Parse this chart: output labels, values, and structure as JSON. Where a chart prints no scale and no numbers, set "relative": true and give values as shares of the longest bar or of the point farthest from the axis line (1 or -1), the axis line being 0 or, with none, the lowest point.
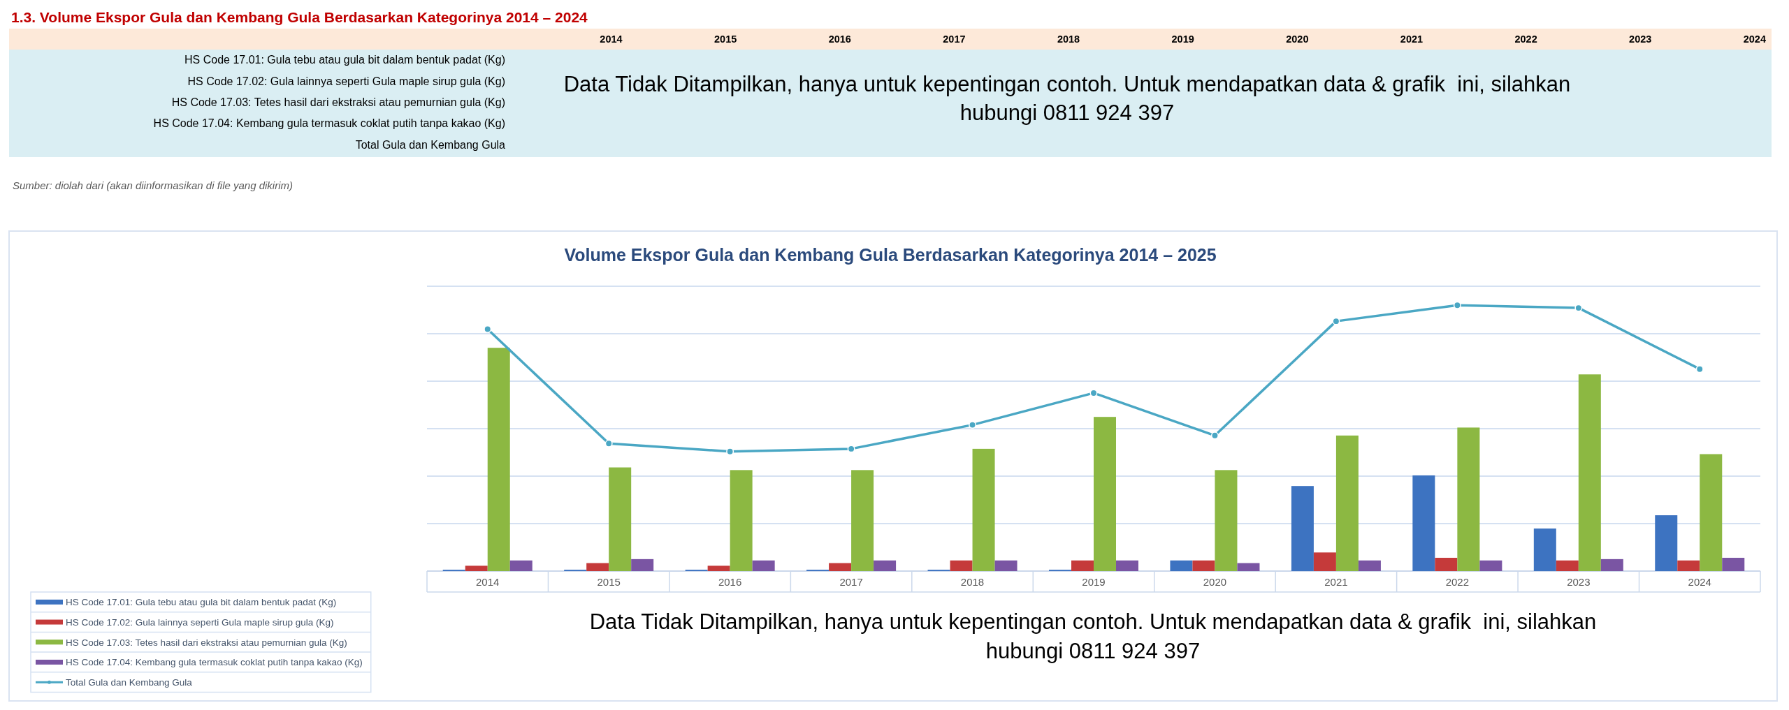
{
  "chart_data": [
    {
      "type": "heatmap",
      "title": "1.3. Volume Ekspor Gula dan Kembang Gula Berdasarkan Kategorinya 2014 – 2024",
      "categories": [
        "2014",
        "2015",
        "2016",
        "2017",
        "2018",
        "2019",
        "2020",
        "2021",
        "2022",
        "2023",
        "2024"
      ],
      "y_categories": [
        "HS Code 17.01: Gula tebu atau gula bit dalam bentuk padat (Kg)",
        "HS Code 17.02: Gula lainnya seperti Gula maple sirup gula (Kg)",
        "HS Code 17.03: Tetes hasil dari ekstraksi atau pemurnian gula (Kg)",
        "HS Code 17.04: Kembang gula termasuk coklat putih tanpa kakao (Kg)",
        "Total Gula dan Kembang Gula"
      ],
      "cells": [
        [
          null,
          null,
          null,
          null,
          null,
          null,
          null,
          null,
          null,
          null,
          null
        ],
        [
          null,
          null,
          null,
          null,
          null,
          null,
          null,
          null,
          null,
          null,
          null
        ],
        [
          null,
          null,
          null,
          null,
          null,
          null,
          null,
          null,
          null,
          null,
          null
        ],
        [
          null,
          null,
          null,
          null,
          null,
          null,
          null,
          null,
          null,
          null,
          null
        ],
        [
          null,
          null,
          null,
          null,
          null,
          null,
          null,
          null,
          null,
          null,
          null
        ]
      ],
      "annotations": [
        "Data Tidak Ditampilkan, hanya untuk kepentingan contoh. Untuk mendapatkan data & grafik  ini, silahkan hubungi 0811 924 397",
        "Sumber: diolah dari (akan diinformasikan di file yang dikirim)"
      ]
    },
    {
      "type": "bar",
      "title": "Volume Ekspor Gula dan Kembang Gula Berdasarkan Kategorinya 2014 – 2025",
      "categories": [
        "2014",
        "2015",
        "2016",
        "2017",
        "2018",
        "2019",
        "2020",
        "2021",
        "2022",
        "2023",
        "2024"
      ],
      "relative": true,
      "series": [
        {
          "name": "HS Code 17.01: Gula tebu atau gula bit dalam bentuk padat (Kg)",
          "color": "#3d73c1",
          "values": [
            0.005,
            0.005,
            0.005,
            0.005,
            0.005,
            0.005,
            0.04,
            0.32,
            0.36,
            0.16,
            0.21
          ]
        },
        {
          "name": "HS Code 17.02: Gula lainnya seperti Gula maple sirup gula (Kg)",
          "color": "#c53a3a",
          "values": [
            0.02,
            0.03,
            0.02,
            0.03,
            0.04,
            0.04,
            0.04,
            0.07,
            0.05,
            0.04,
            0.04
          ]
        },
        {
          "name": "HS Code 17.03: Tetes hasil dari ekstraksi atau pemurnian gula (Kg)",
          "color": "#8cb842",
          "values": [
            0.84,
            0.39,
            0.38,
            0.38,
            0.46,
            0.58,
            0.38,
            0.51,
            0.54,
            0.74,
            0.44
          ]
        },
        {
          "name": "HS Code 17.04: Kembang gula termasuk coklat putih tanpa kakao (Kg)",
          "color": "#7a55a3",
          "values": [
            0.04,
            0.045,
            0.04,
            0.04,
            0.04,
            0.04,
            0.03,
            0.04,
            0.04,
            0.045,
            0.05
          ]
        },
        {
          "name": "Total Gula dan Kembang Gula",
          "type": "line",
          "color": "#4aa7c4",
          "values": [
            0.91,
            0.48,
            0.45,
            0.46,
            0.55,
            0.67,
            0.51,
            0.94,
            1,
            0.99,
            0.76
          ]
        }
      ],
      "grid": true,
      "legend": "bottom left",
      "marker": "circle",
      "annotations": [
        "Data Tidak Ditampilkan, hanya untuk kepentingan contoh. Untuk mendapatkan data & grafik  ini, silahkan hubungi 0811 924 397"
      ]
    }
  ]
}
